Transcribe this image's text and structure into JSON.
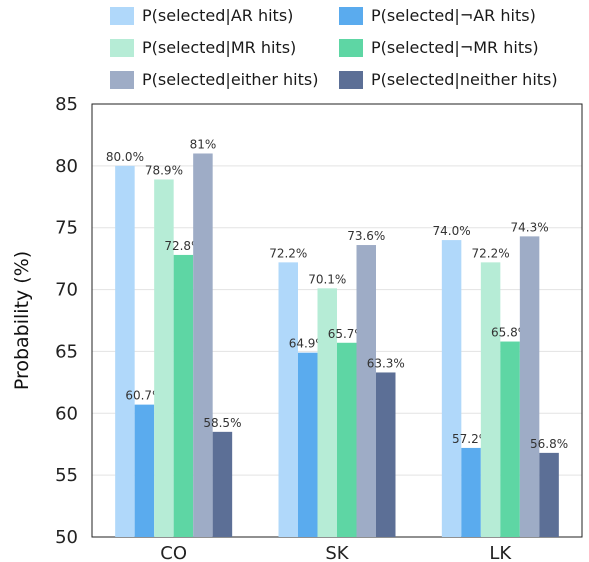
{
  "chart_data": {
    "type": "bar",
    "categories": [
      "CO",
      "SK",
      "LK"
    ],
    "series": [
      {
        "name": "P(selected|AR hits)",
        "color": "#b0d8fa",
        "values": [
          80.0,
          72.2,
          74.0
        ],
        "labels": [
          "80.0%",
          "72.2%",
          "74.0%"
        ]
      },
      {
        "name": "P(selected|¬AR hits)",
        "color": "#5aabee",
        "values": [
          60.7,
          64.9,
          57.2
        ],
        "labels": [
          "60.7%",
          "64.9%",
          "57.2%"
        ]
      },
      {
        "name": "P(selected|MR hits)",
        "color": "#b6ecd6",
        "values": [
          78.9,
          70.1,
          72.2
        ],
        "labels": [
          "78.9%",
          "70.1%",
          "72.2%"
        ]
      },
      {
        "name": "P(selected|¬MR hits)",
        "color": "#5ed6a4",
        "values": [
          72.8,
          65.7,
          65.8
        ],
        "labels": [
          "72.8%",
          "65.7%",
          "65.8%"
        ]
      },
      {
        "name": "P(selected|either hits)",
        "color": "#9eacc6",
        "values": [
          81,
          73.6,
          74.3
        ],
        "labels": [
          "81%",
          "73.6%",
          "74.3%"
        ]
      },
      {
        "name": "P(selected|neither hits)",
        "color": "#5c6f96",
        "values": [
          58.5,
          63.3,
          56.8
        ],
        "labels": [
          "58.5%",
          "63.3%",
          "56.8%"
        ]
      }
    ],
    "ylabel": "Probability (%)",
    "xlabel": "",
    "ylim": [
      50,
      85
    ],
    "yticks": [
      "50",
      "55",
      "60",
      "65",
      "70",
      "75",
      "80",
      "85"
    ],
    "grid": true,
    "legend_position": "top"
  }
}
